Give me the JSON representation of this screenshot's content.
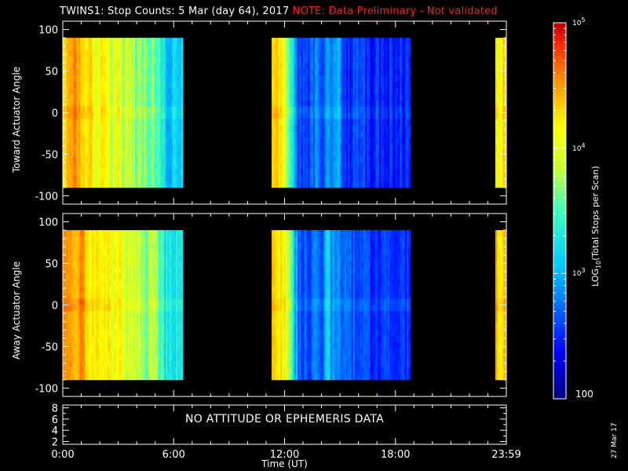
{
  "title": {
    "main": "TWINS1: Stop Counts:  5 Mar (day  64), 2017",
    "note": "NOTE: Data Preliminary - Not validated"
  },
  "colors": {
    "background": "#000000",
    "axis": "#ffffff",
    "note": "#ff2020"
  },
  "panels": {
    "toward": {
      "ylabel": "Toward Actuator Angle"
    },
    "away": {
      "ylabel": "Away Actuator Angle"
    },
    "footer": {
      "message": "NO ATTITUDE OR EPHEMERIS DATA"
    }
  },
  "colorbar": {
    "label": "LOG10(Total Stops per Scan)",
    "min_label": "100",
    "scale": "log",
    "range": [
      100,
      100000
    ],
    "ticks": [
      {
        "value": 1000,
        "label": "10^3"
      },
      {
        "value": 10000,
        "label": "10^4"
      },
      {
        "value": 100000,
        "label": "10^5"
      }
    ]
  },
  "xaxis": {
    "title": "Time (UT)",
    "ticks": [
      "0:00",
      "6:00",
      "12:00",
      "18:00",
      "23:59"
    ]
  },
  "datestamp": "27 Mar 17",
  "chart_data": [
    {
      "type": "heatmap",
      "panel": "toward",
      "ylabel": "Toward Actuator Angle",
      "xlabel": "Time (UT)",
      "xlim": [
        0,
        24
      ],
      "ylim": [
        -110,
        110
      ],
      "data_ylim": [
        -90,
        90
      ],
      "yticks": [
        -100,
        -50,
        0,
        50,
        100
      ],
      "colorscale": "log",
      "crange": [
        100,
        100000
      ],
      "segments": [
        {
          "start": 0.0,
          "end": 6.5,
          "log_count_profile": [
            [
              0.0,
              4.2
            ],
            [
              0.3,
              4.4
            ],
            [
              0.6,
              4.5
            ],
            [
              0.9,
              4.3
            ],
            [
              1.2,
              4.1
            ],
            [
              1.5,
              4.3
            ],
            [
              1.8,
              4.0
            ],
            [
              2.1,
              4.2
            ],
            [
              2.4,
              4.0
            ],
            [
              2.7,
              3.9
            ],
            [
              3.0,
              4.1
            ],
            [
              3.3,
              3.8
            ],
            [
              3.6,
              3.9
            ],
            [
              3.9,
              3.7
            ],
            [
              4.2,
              3.8
            ],
            [
              4.5,
              3.6
            ],
            [
              4.8,
              3.7
            ],
            [
              5.1,
              3.5
            ],
            [
              5.4,
              3.3
            ],
            [
              5.7,
              3.0
            ],
            [
              6.0,
              3.2
            ],
            [
              6.3,
              3.1
            ]
          ]
        },
        {
          "start": 11.3,
          "end": 18.8,
          "log_count_profile": [
            [
              11.3,
              4.4
            ],
            [
              11.6,
              4.3
            ],
            [
              11.9,
              4.1
            ],
            [
              12.2,
              3.7
            ],
            [
              12.5,
              3.0
            ],
            [
              12.8,
              2.6
            ],
            [
              13.1,
              2.5
            ],
            [
              13.4,
              2.6
            ],
            [
              13.7,
              2.8
            ],
            [
              14.0,
              2.6
            ],
            [
              14.3,
              3.0
            ],
            [
              14.6,
              2.7
            ],
            [
              14.9,
              2.9
            ],
            [
              15.2,
              2.6
            ],
            [
              15.5,
              2.5
            ],
            [
              15.8,
              2.6
            ],
            [
              16.1,
              2.5
            ],
            [
              16.4,
              2.5
            ],
            [
              16.7,
              2.4
            ],
            [
              17.0,
              2.5
            ],
            [
              17.3,
              2.4
            ],
            [
              17.6,
              2.5
            ],
            [
              17.9,
              2.4
            ],
            [
              18.2,
              2.5
            ],
            [
              18.5,
              2.4
            ],
            [
              18.8,
              2.5
            ]
          ]
        },
        {
          "start": 23.4,
          "end": 24.0,
          "log_count_profile": [
            [
              23.4,
              4.5
            ],
            [
              23.6,
              3.8
            ],
            [
              23.8,
              4.4
            ],
            [
              24.0,
              4.2
            ]
          ]
        }
      ]
    },
    {
      "type": "heatmap",
      "panel": "away",
      "ylabel": "Away Actuator Angle",
      "xlabel": "Time (UT)",
      "xlim": [
        0,
        24
      ],
      "ylim": [
        -110,
        110
      ],
      "data_ylim": [
        -90,
        90
      ],
      "yticks": [
        -100,
        -50,
        0,
        50,
        100
      ],
      "colorscale": "log",
      "crange": [
        100,
        100000
      ],
      "segments": [
        {
          "start": 0.0,
          "end": 6.5,
          "log_count_profile": [
            [
              0.0,
              4.5
            ],
            [
              0.3,
              4.6
            ],
            [
              0.6,
              4.3
            ],
            [
              0.9,
              4.5
            ],
            [
              1.2,
              4.4
            ],
            [
              1.5,
              4.3
            ],
            [
              1.8,
              4.2
            ],
            [
              2.1,
              4.3
            ],
            [
              2.4,
              4.1
            ],
            [
              2.7,
              4.0
            ],
            [
              3.0,
              4.2
            ],
            [
              3.3,
              3.9
            ],
            [
              3.6,
              4.0
            ],
            [
              3.9,
              3.8
            ],
            [
              4.2,
              3.9
            ],
            [
              4.5,
              3.7
            ],
            [
              4.8,
              3.8
            ],
            [
              5.1,
              3.6
            ],
            [
              5.4,
              3.4
            ],
            [
              5.7,
              3.2
            ],
            [
              6.0,
              3.3
            ],
            [
              6.3,
              3.2
            ]
          ]
        },
        {
          "start": 11.3,
          "end": 18.8,
          "log_count_profile": [
            [
              11.3,
              4.5
            ],
            [
              11.6,
              4.3
            ],
            [
              11.9,
              4.2
            ],
            [
              12.2,
              3.9
            ],
            [
              12.5,
              3.1
            ],
            [
              12.8,
              2.7
            ],
            [
              13.1,
              2.6
            ],
            [
              13.4,
              2.7
            ],
            [
              13.7,
              2.9
            ],
            [
              14.0,
              2.6
            ],
            [
              14.3,
              3.1
            ],
            [
              14.6,
              2.8
            ],
            [
              14.9,
              3.0
            ],
            [
              15.2,
              2.7
            ],
            [
              15.5,
              2.6
            ],
            [
              15.8,
              2.7
            ],
            [
              16.1,
              2.6
            ],
            [
              16.4,
              2.6
            ],
            [
              16.7,
              2.5
            ],
            [
              17.0,
              2.6
            ],
            [
              17.3,
              2.5
            ],
            [
              17.6,
              2.6
            ],
            [
              17.9,
              2.5
            ],
            [
              18.2,
              2.6
            ],
            [
              18.5,
              2.5
            ],
            [
              18.8,
              2.6
            ]
          ]
        },
        {
          "start": 23.4,
          "end": 24.0,
          "log_count_profile": [
            [
              23.4,
              4.5
            ],
            [
              23.6,
              4.0
            ],
            [
              23.8,
              4.3
            ],
            [
              24.0,
              4.4
            ]
          ]
        }
      ]
    },
    {
      "type": "line",
      "panel": "footer",
      "xlim": [
        0,
        24
      ],
      "ylim": [
        1.5,
        8.5
      ],
      "yticks": [
        2,
        4,
        6,
        8
      ],
      "series": []
    }
  ]
}
